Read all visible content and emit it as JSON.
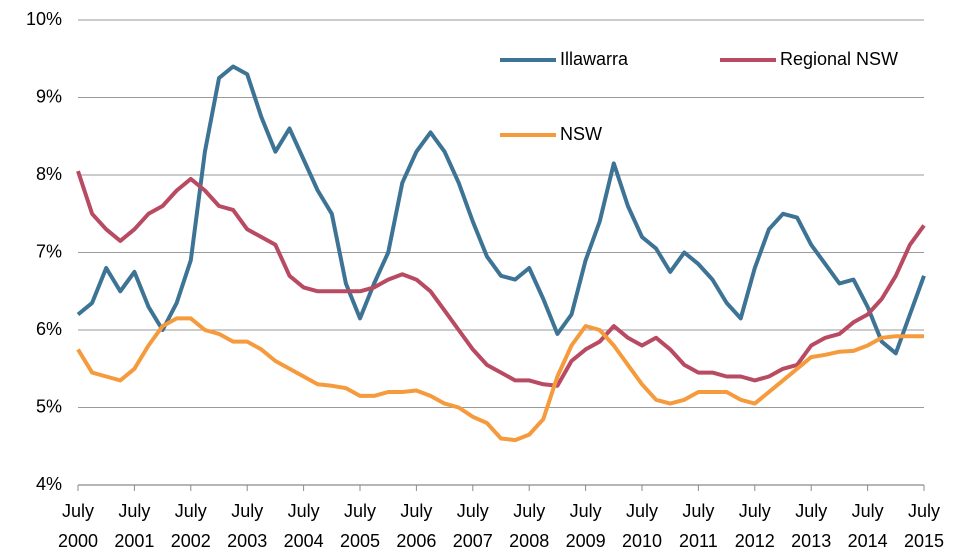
{
  "chart_data": {
    "type": "line",
    "x": [
      2000.5,
      2000.75,
      2001,
      2001.25,
      2001.5,
      2001.75,
      2002,
      2002.25,
      2002.5,
      2002.75,
      2003,
      2003.25,
      2003.5,
      2003.75,
      2004,
      2004.25,
      2004.5,
      2004.75,
      2005,
      2005.25,
      2005.5,
      2005.75,
      2006,
      2006.25,
      2006.5,
      2006.75,
      2007,
      2007.25,
      2007.5,
      2007.75,
      2008,
      2008.25,
      2008.5,
      2008.75,
      2009,
      2009.25,
      2009.5,
      2009.75,
      2010,
      2010.25,
      2010.5,
      2010.75,
      2011,
      2011.25,
      2011.5,
      2011.75,
      2012,
      2012.25,
      2012.5,
      2012.75,
      2013,
      2013.25,
      2013.5,
      2013.75,
      2014,
      2014.25,
      2014.5,
      2014.75,
      2015,
      2015.25,
      2015.5
    ],
    "series": [
      {
        "name": "Illawarra",
        "color": "#3d7394",
        "values": [
          6.2,
          6.35,
          6.8,
          6.5,
          6.75,
          6.3,
          6.0,
          6.35,
          6.9,
          8.3,
          9.25,
          9.4,
          9.3,
          8.75,
          8.3,
          8.6,
          8.2,
          7.8,
          7.5,
          6.6,
          6.15,
          6.6,
          7.0,
          7.9,
          8.3,
          8.55,
          8.3,
          7.9,
          7.4,
          6.95,
          6.7,
          6.65,
          6.8,
          6.4,
          5.95,
          6.2,
          6.9,
          7.4,
          8.15,
          7.6,
          7.2,
          7.05,
          6.75,
          7.0,
          6.85,
          6.65,
          6.35,
          6.15,
          6.8,
          7.3,
          7.5,
          7.45,
          7.1,
          6.85,
          6.6,
          6.65,
          6.3,
          5.85,
          5.7,
          6.2,
          6.7
        ]
      },
      {
        "name": "Regional NSW",
        "color": "#b84a62",
        "values": [
          8.05,
          7.5,
          7.3,
          7.15,
          7.3,
          7.5,
          7.6,
          7.8,
          7.95,
          7.8,
          7.6,
          7.55,
          7.3,
          7.2,
          7.1,
          6.7,
          6.55,
          6.5,
          6.5,
          6.5,
          6.5,
          6.55,
          6.65,
          6.72,
          6.65,
          6.5,
          6.25,
          6.0,
          5.75,
          5.55,
          5.45,
          5.35,
          5.35,
          5.3,
          5.28,
          5.6,
          5.75,
          5.85,
          6.05,
          5.9,
          5.8,
          5.9,
          5.75,
          5.55,
          5.45,
          5.45,
          5.4,
          5.4,
          5.35,
          5.4,
          5.5,
          5.55,
          5.8,
          5.9,
          5.95,
          6.1,
          6.2,
          6.4,
          6.7,
          7.1,
          7.35
        ]
      },
      {
        "name": "NSW",
        "color": "#f59b3d",
        "values": [
          5.75,
          5.45,
          5.4,
          5.35,
          5.5,
          5.8,
          6.05,
          6.15,
          6.15,
          6.0,
          5.95,
          5.85,
          5.85,
          5.75,
          5.6,
          5.5,
          5.4,
          5.3,
          5.28,
          5.25,
          5.15,
          5.15,
          5.2,
          5.2,
          5.22,
          5.15,
          5.05,
          5.0,
          4.88,
          4.8,
          4.6,
          4.58,
          4.65,
          4.85,
          5.4,
          5.8,
          6.05,
          6.0,
          5.8,
          5.55,
          5.3,
          5.1,
          5.05,
          5.1,
          5.2,
          5.2,
          5.2,
          5.1,
          5.05,
          5.2,
          5.35,
          5.5,
          5.65,
          5.68,
          5.72,
          5.73,
          5.8,
          5.9,
          5.92,
          5.92,
          5.92
        ]
      }
    ],
    "xlim": [
      2000.5,
      2015.5
    ],
    "xticks": [
      {
        "value": 2000.5,
        "label": "July 2000"
      },
      {
        "value": 2001.5,
        "label": "July 2001"
      },
      {
        "value": 2002.5,
        "label": "July 2002"
      },
      {
        "value": 2003.5,
        "label": "July 2003"
      },
      {
        "value": 2004.5,
        "label": "July 2004"
      },
      {
        "value": 2005.5,
        "label": "July 2005"
      },
      {
        "value": 2006.5,
        "label": "July 2006"
      },
      {
        "value": 2007.5,
        "label": "July 2007"
      },
      {
        "value": 2008.5,
        "label": "July 2008"
      },
      {
        "value": 2009.5,
        "label": "July 2009"
      },
      {
        "value": 2010.5,
        "label": "July 2010"
      },
      {
        "value": 2011.5,
        "label": "July 2011"
      },
      {
        "value": 2012.5,
        "label": "July 2012"
      },
      {
        "value": 2013.5,
        "label": "July 2013"
      },
      {
        "value": 2014.5,
        "label": "July 2014"
      },
      {
        "value": 2015.5,
        "label": "July 2015"
      }
    ],
    "ylim": [
      4,
      10
    ],
    "yticks": [
      {
        "value": 4,
        "label": "4%"
      },
      {
        "value": 5,
        "label": "5%"
      },
      {
        "value": 6,
        "label": "6%"
      },
      {
        "value": 7,
        "label": "7%"
      },
      {
        "value": 8,
        "label": "8%"
      },
      {
        "value": 9,
        "label": "9%"
      },
      {
        "value": 10,
        "label": "10%"
      }
    ],
    "grid": true
  }
}
